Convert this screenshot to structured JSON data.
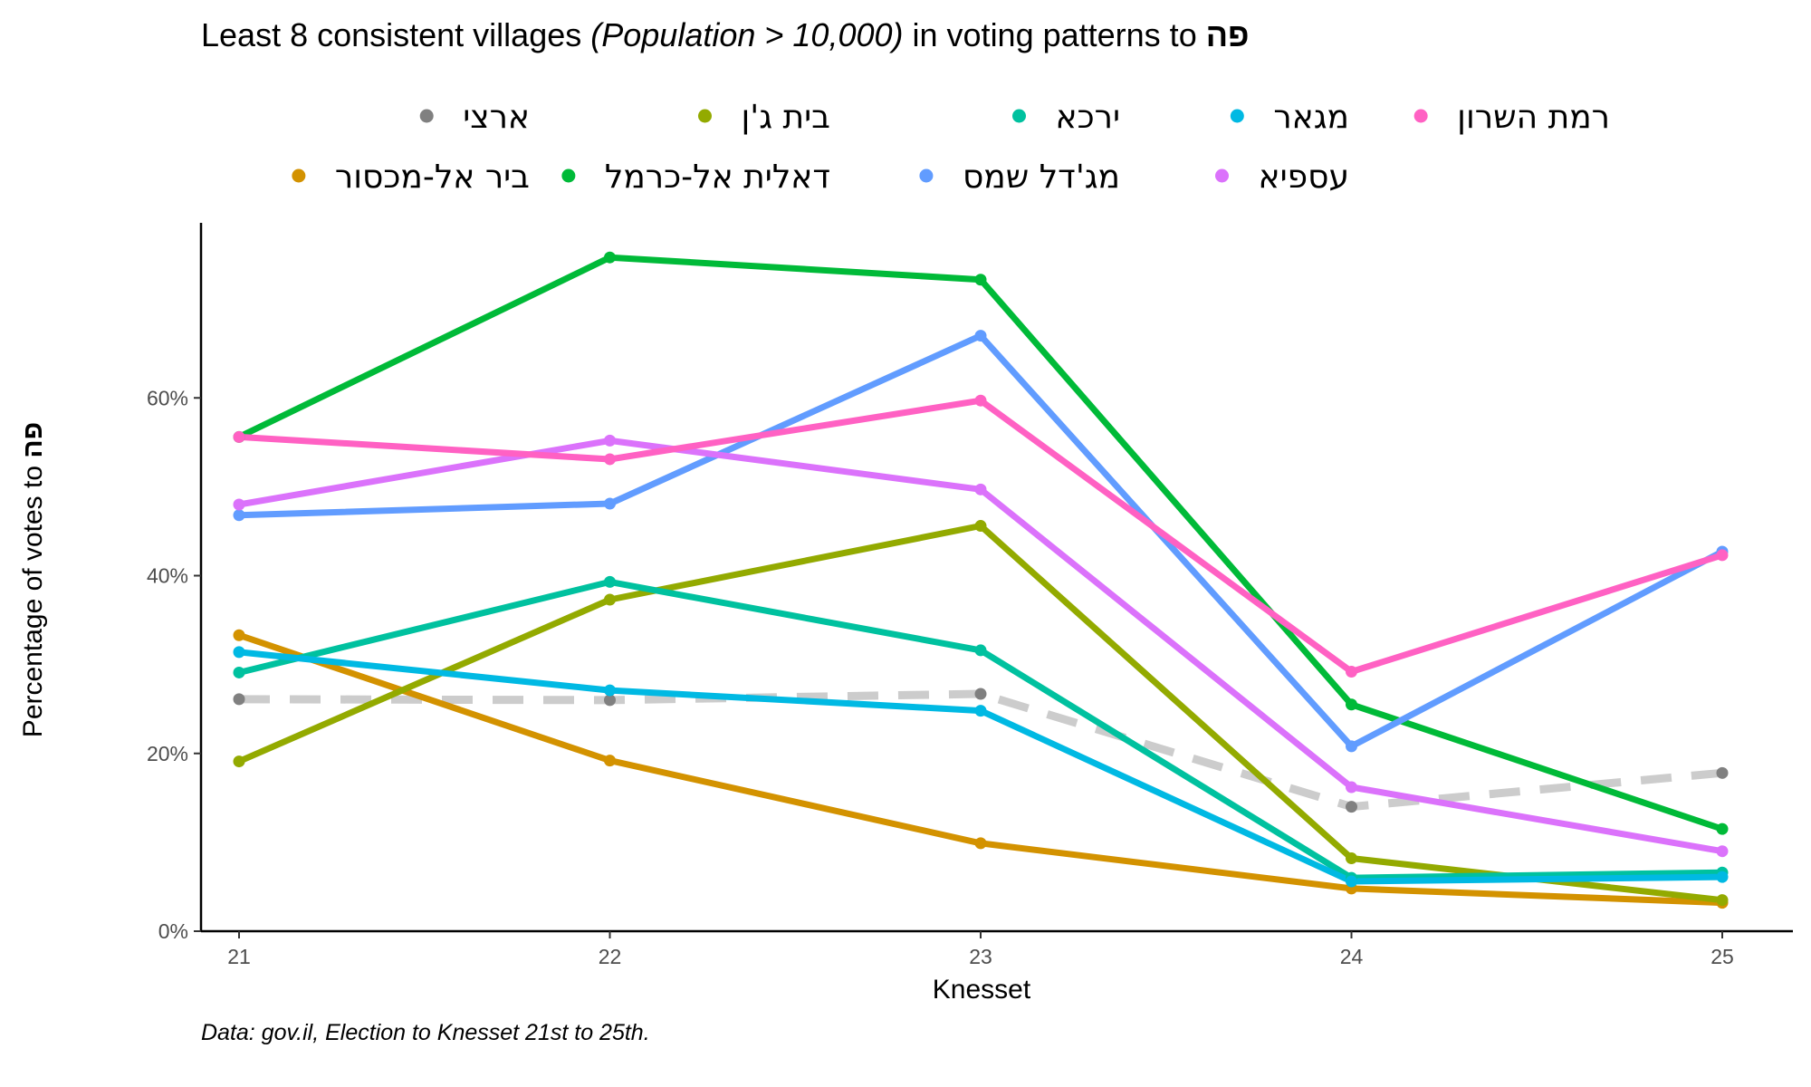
{
  "title": {
    "prefix": "Least 8 consistent villages ",
    "italic": "(Population > 10,000)",
    "middle": " in voting patterns to ",
    "party": "פה"
  },
  "caption": "Data: gov.il, Election to Knesset 21st to 25th.",
  "chart_data": {
    "type": "line",
    "x": [
      21,
      22,
      23,
      24,
      25
    ],
    "xlabel": "Knesset",
    "ylabel_prefix": "Percentage of votes to ",
    "ylabel_party": "פה",
    "ylim": [
      0,
      0.8
    ],
    "yticks": [
      0,
      0.2,
      0.4,
      0.6
    ],
    "ytick_labels": [
      "0%",
      "20%",
      "40%",
      "60%"
    ],
    "xtick_labels": [
      "21",
      "22",
      "23",
      "24",
      "25"
    ],
    "grid": false,
    "legend_position": "top",
    "series": [
      {
        "name": "ארצי",
        "color": "#808080",
        "dashed": true,
        "line_color": "#cccccc",
        "values": [
          0.261,
          0.26,
          0.267,
          0.14,
          0.178
        ]
      },
      {
        "name": "ביר אל-מכסור",
        "color": "#D39200",
        "values": [
          0.333,
          0.192,
          0.099,
          0.048,
          0.032
        ]
      },
      {
        "name": "בית ג'ן",
        "color": "#93AA00",
        "values": [
          0.191,
          0.373,
          0.456,
          0.082,
          0.035
        ]
      },
      {
        "name": "דאלית אל-כרמל",
        "color": "#00BA38",
        "values": [
          0.556,
          0.758,
          0.733,
          0.255,
          0.115
        ]
      },
      {
        "name": "ירכא",
        "color": "#00C19F",
        "values": [
          0.291,
          0.393,
          0.316,
          0.06,
          0.066
        ]
      },
      {
        "name": "מג'דל שמס",
        "color": "#619CFF",
        "values": [
          0.468,
          0.481,
          0.67,
          0.208,
          0.427
        ]
      },
      {
        "name": "מגאר",
        "color": "#00B9E3",
        "values": [
          0.314,
          0.271,
          0.248,
          0.056,
          0.061
        ]
      },
      {
        "name": "עספיא",
        "color": "#DB72FB",
        "values": [
          0.48,
          0.552,
          0.497,
          0.162,
          0.09
        ]
      },
      {
        "name": "רמת השרון",
        "color": "#FF61C3",
        "values": [
          0.556,
          0.531,
          0.597,
          0.292,
          0.423
        ]
      }
    ]
  }
}
